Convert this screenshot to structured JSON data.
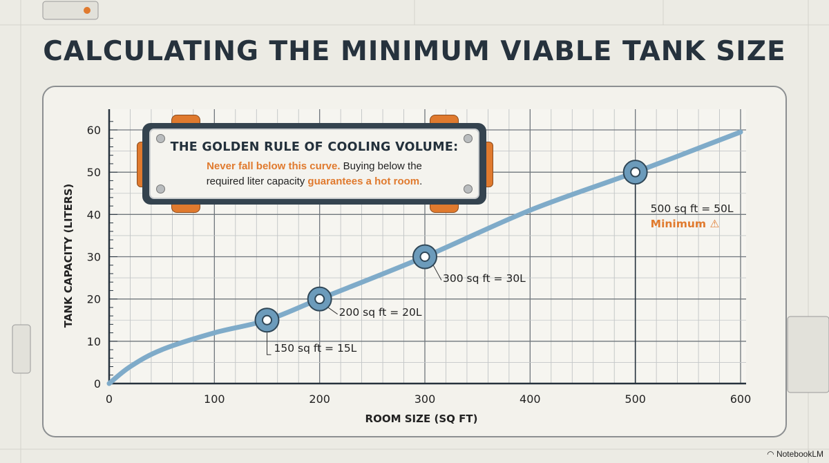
{
  "title": "CALCULATING THE MINIMUM VIABLE TANK SIZE",
  "callout": {
    "heading": "THE GOLDEN RULE OF COOLING VOLUME:",
    "line1_highlight": "Never fall below this curve.",
    "line1_rest": " Buying below the",
    "line2_start": "required liter capacity ",
    "line2_highlight": "guarantees a hot room",
    "line2_end": "."
  },
  "brand": "NotebookLM",
  "colors": {
    "curve": "#7fabc9",
    "accent": "#e07a2e",
    "dark": "#26323d",
    "background": "#ecebe4"
  },
  "chart_data": {
    "type": "line",
    "title": "CALCULATING THE MINIMUM VIABLE TANK SIZE",
    "xlabel": "ROOM SIZE (SQ FT)",
    "ylabel": "TANK CAPACITY (LITERS)",
    "xlim": [
      0,
      600
    ],
    "ylim": [
      0,
      60
    ],
    "xticks": [
      0,
      100,
      200,
      300,
      400,
      500,
      600
    ],
    "yticks": [
      0,
      10,
      20,
      30,
      40,
      50,
      60
    ],
    "grid": true,
    "series": [
      {
        "x": [
          0,
          20,
          50,
          100,
          150,
          200,
          300,
          400,
          500,
          600
        ],
        "y": [
          0,
          4,
          8,
          12,
          15,
          20,
          30,
          41,
          50,
          59.5
        ]
      }
    ],
    "annotations": [
      {
        "x": 150,
        "y": 15,
        "text": "150 sq ft = 15L"
      },
      {
        "x": 200,
        "y": 20,
        "text": "200 sq ft = 20L"
      },
      {
        "x": 300,
        "y": 30,
        "text": "300 sq ft = 30L"
      },
      {
        "x": 500,
        "y": 50,
        "text": "500 sq ft = 50L",
        "note": "Minimum",
        "icon": "warning-icon"
      }
    ]
  }
}
